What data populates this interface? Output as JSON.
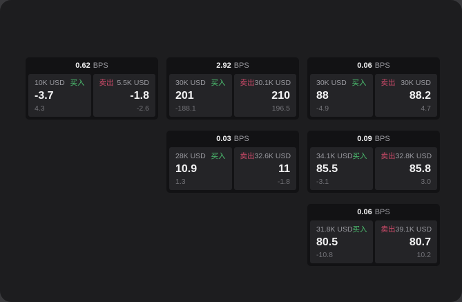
{
  "labels": {
    "buy": "买入",
    "sell": "卖出",
    "bps_unit": "BPS"
  },
  "colors": {
    "buy": "#4cbf70",
    "sell": "#d14b6b",
    "panel_bg": "#1d1d1f",
    "card_bg": "#121214",
    "tile_bg": "#242427",
    "value_text": "#f2f2f3",
    "muted_text": "#9a9aa0",
    "faint_text": "#737378"
  },
  "cards": [
    {
      "bps": "0.62",
      "col": 1,
      "row": 1,
      "buy": {
        "amount": "10K USD",
        "price": "-3.7",
        "delta": "4.3"
      },
      "sell": {
        "amount": "5.5K USD",
        "price": "-1.8",
        "delta": "-2.6"
      }
    },
    {
      "bps": "2.92",
      "col": 2,
      "row": 1,
      "buy": {
        "amount": "30K USD",
        "price": "201",
        "delta": "-188.1"
      },
      "sell": {
        "amount": "30.1K USD",
        "price": "210",
        "delta": "196.5"
      }
    },
    {
      "bps": "0.06",
      "col": 3,
      "row": 1,
      "buy": {
        "amount": "30K USD",
        "price": "88",
        "delta": "-4.9"
      },
      "sell": {
        "amount": "30K USD",
        "price": "88.2",
        "delta": "4.7"
      }
    },
    {
      "bps": "0.03",
      "col": 2,
      "row": 2,
      "buy": {
        "amount": "28K USD",
        "price": "10.9",
        "delta": "1.3"
      },
      "sell": {
        "amount": "32.6K USD",
        "price": "11",
        "delta": "-1.8"
      }
    },
    {
      "bps": "0.09",
      "col": 3,
      "row": 2,
      "buy": {
        "amount": "34.1K USD",
        "price": "85.5",
        "delta": "-3.1"
      },
      "sell": {
        "amount": "32.8K USD",
        "price": "85.8",
        "delta": "3.0"
      }
    },
    {
      "bps": "0.06",
      "col": 3,
      "row": 3,
      "buy": {
        "amount": "31.8K USD",
        "price": "80.5",
        "delta": "-10.8"
      },
      "sell": {
        "amount": "39.1K USD",
        "price": "80.7",
        "delta": "10.2"
      }
    }
  ]
}
